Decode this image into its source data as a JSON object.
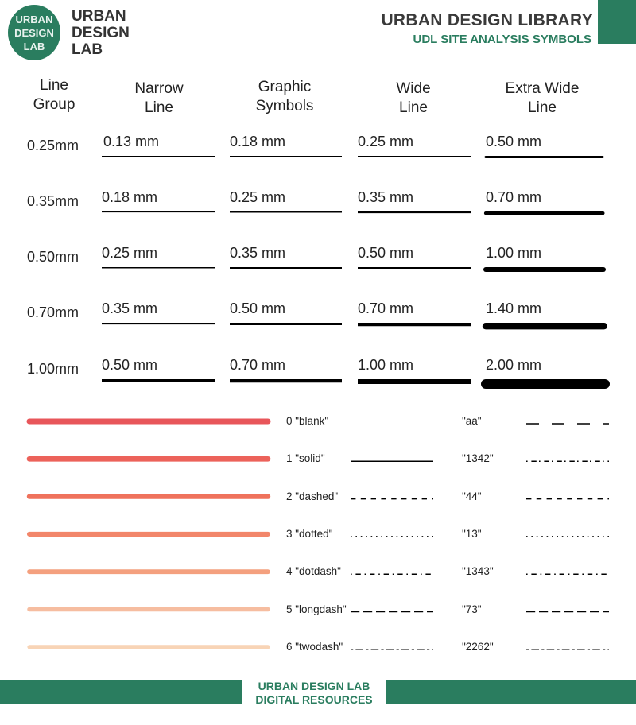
{
  "header": {
    "logo_text": [
      "URBAN",
      "DESIGN",
      "LAB"
    ],
    "brand_lines": [
      "URBAN",
      "DESIGN",
      "LAB"
    ],
    "library_title": "URBAN DESIGN LIBRARY",
    "library_subtitle": "UDL SITE ANALYSIS SYMBOLS",
    "brand_color": "#2a7d5f"
  },
  "line_table": {
    "headers": [
      [
        "Line",
        "Group"
      ],
      [
        "Narrow",
        "Line"
      ],
      [
        "Graphic",
        "Symbols"
      ],
      [
        "Wide",
        "Line"
      ],
      [
        "Extra Wide",
        "Line"
      ]
    ],
    "rows": [
      {
        "group": "0.25mm",
        "values": [
          "0.13 mm",
          "0.18 mm",
          "0.25 mm",
          "0.50 mm"
        ],
        "mm": [
          0.13,
          0.18,
          0.25,
          0.5
        ]
      },
      {
        "group": "0.35mm",
        "values": [
          "0.18 mm",
          "0.25 mm",
          "0.35 mm",
          "0.70 mm"
        ],
        "mm": [
          0.18,
          0.25,
          0.35,
          0.7
        ]
      },
      {
        "group": "0.50mm",
        "values": [
          "0.25 mm",
          "0.35 mm",
          "0.50 mm",
          "1.00 mm"
        ],
        "mm": [
          0.25,
          0.35,
          0.5,
          1.0
        ]
      },
      {
        "group": "0.70mm",
        "values": [
          "0.35 mm",
          "0.50 mm",
          "0.70 mm",
          "1.40 mm"
        ],
        "mm": [
          0.35,
          0.5,
          0.7,
          1.4
        ]
      },
      {
        "group": "1.00mm",
        "values": [
          "0.50 mm",
          "0.70 mm",
          "1.00 mm",
          "2.00 mm"
        ],
        "mm": [
          0.5,
          0.7,
          1.0,
          2.0
        ]
      }
    ]
  },
  "line_types": {
    "items": [
      {
        "label": "0 \"blank\"",
        "type": "blank",
        "bar_color": "#e8565a",
        "code": "\"aa\"",
        "pattern": "aa"
      },
      {
        "label": "1 \"solid\"",
        "type": "solid",
        "bar_color": "#ec625a",
        "code": "\"1342\"",
        "pattern": "1342"
      },
      {
        "label": "2 \"dashed\"",
        "type": "dashed",
        "bar_color": "#ef725c",
        "code": "\"44\"",
        "pattern": "44"
      },
      {
        "label": "3 \"dotted\"",
        "type": "dotted",
        "bar_color": "#f2866a",
        "code": "\"13\"",
        "pattern": "13"
      },
      {
        "label": "4 \"dotdash\"",
        "type": "dotdash",
        "bar_color": "#f4a07e",
        "code": "\"1343\"",
        "pattern": "1343"
      },
      {
        "label": "5 \"longdash\"",
        "type": "longdash",
        "bar_color": "#f6bda0",
        "code": "\"73\"",
        "pattern": "73"
      },
      {
        "label": "6 \"twodash\"",
        "type": "twodash",
        "bar_color": "#f8d4b6",
        "code": "\"2262\"",
        "pattern": "2262"
      }
    ]
  },
  "footer": {
    "line1": "URBAN DESIGN LAB",
    "line2": "DIGITAL RESOURCES"
  }
}
